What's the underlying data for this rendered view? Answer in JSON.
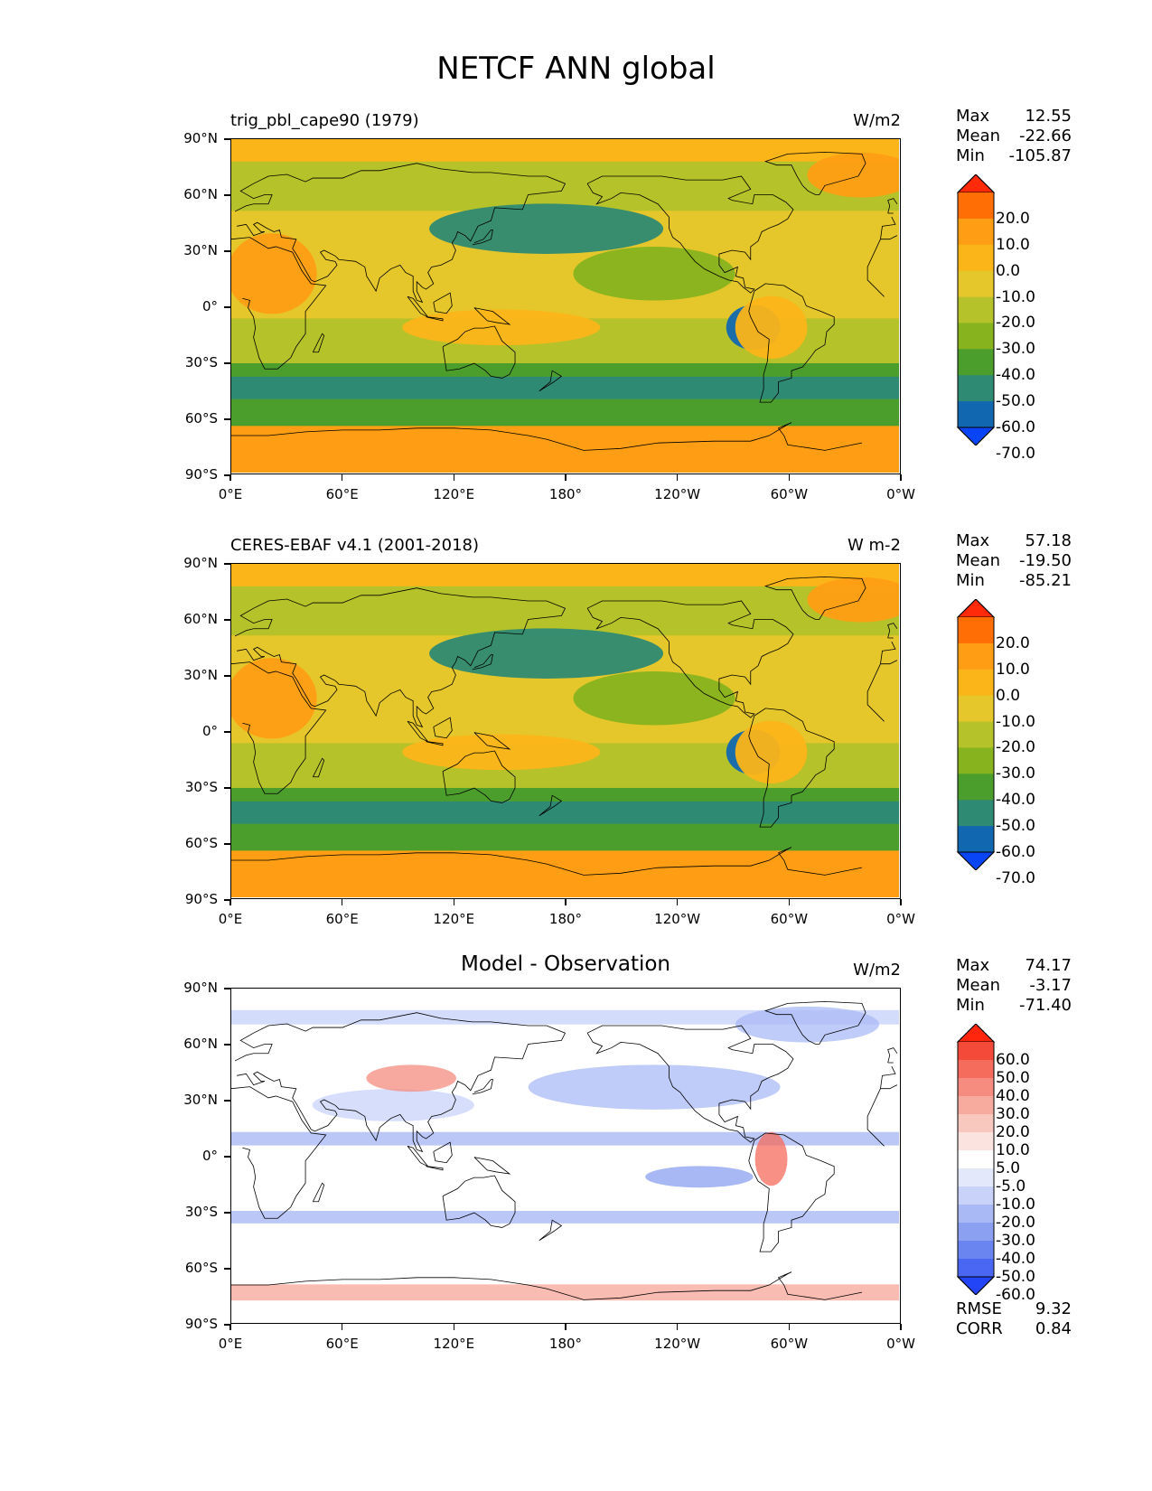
{
  "figure": {
    "title": "NETCF ANN global"
  },
  "axes": {
    "lat_labels": [
      "90°N",
      "60°N",
      "30°N",
      "0°",
      "30°S",
      "60°S",
      "90°S"
    ],
    "lon_labels": [
      "0°E",
      "60°E",
      "120°E",
      "180°",
      "120°W",
      "60°W",
      "0°W"
    ]
  },
  "panels": [
    {
      "title": "trig_pbl_cape90 (1979)",
      "units": "W/m2",
      "stats": {
        "max_label": "Max",
        "max": "12.55",
        "mean_label": "Mean",
        "mean": "-22.66",
        "min_label": "Min",
        "min": "-105.87"
      },
      "colorbar": {
        "labels": [
          "20.0",
          "10.0",
          "0.0",
          "-10.0",
          "-20.0",
          "-30.0",
          "-40.0",
          "-50.0",
          "-60.0",
          "-70.0"
        ],
        "colors": [
          "#ff2a0a",
          "#ff6e05",
          "#ff9e14",
          "#fcb519",
          "#e5c72b",
          "#b5c229",
          "#86b31e",
          "#4c9e2c",
          "#2f8a73",
          "#1268b0",
          "#0a45f5"
        ]
      }
    },
    {
      "title": "CERES-EBAF v4.1 (2001-2018)",
      "units": "W m-2",
      "stats": {
        "max_label": "Max",
        "max": "57.18",
        "mean_label": "Mean",
        "mean": "-19.50",
        "min_label": "Min",
        "min": "-85.21"
      },
      "colorbar": {
        "labels": [
          "20.0",
          "10.0",
          "0.0",
          "-10.0",
          "-20.0",
          "-30.0",
          "-40.0",
          "-50.0",
          "-60.0",
          "-70.0"
        ],
        "colors": [
          "#ff2a0a",
          "#ff6e05",
          "#ff9e14",
          "#fcb519",
          "#e5c72b",
          "#b5c229",
          "#86b31e",
          "#4c9e2c",
          "#2f8a73",
          "#1268b0",
          "#0a45f5"
        ]
      }
    },
    {
      "title": "Model - Observation",
      "units": "W/m2",
      "stats": {
        "max_label": "Max",
        "max": "74.17",
        "mean_label": "Mean",
        "mean": "-3.17",
        "min_label": "Min",
        "min": "-71.40"
      },
      "colorbar": {
        "labels": [
          "60.0",
          "50.0",
          "40.0",
          "30.0",
          "20.0",
          "10.0",
          "5.0",
          "-5.0",
          "-10.0",
          "-20.0",
          "-30.0",
          "-40.0",
          "-50.0",
          "-60.0"
        ],
        "colors": [
          "#ff260d",
          "#f44a3a",
          "#f56b5c",
          "#f58c7f",
          "#f7ab9f",
          "#f8c8bf",
          "#fbe4df",
          "#ffffff",
          "#e3e8fb",
          "#c9d3fa",
          "#a9b9f5",
          "#8ba0f0",
          "#6a84f0",
          "#4a67f3",
          "#2245f8"
        ]
      },
      "extra": {
        "rmse_label": "RMSE",
        "rmse": "9.32",
        "corr_label": "CORR",
        "corr": "0.84"
      }
    }
  ],
  "chart_data": [
    {
      "type": "heatmap",
      "title": "trig_pbl_cape90 (1979)",
      "units": "W/m2",
      "xlabel": "",
      "ylabel": "",
      "x_ticks": [
        "0°E",
        "60°E",
        "120°E",
        "180°",
        "120°W",
        "60°W",
        "0°W"
      ],
      "y_ticks": [
        "90°N",
        "60°N",
        "30°N",
        "0°",
        "30°S",
        "60°S",
        "90°S"
      ],
      "stats": {
        "max": 12.55,
        "mean": -22.66,
        "min": -105.87
      },
      "levels": [
        20,
        10,
        0,
        -10,
        -20,
        -30,
        -40,
        -50,
        -60,
        -70
      ],
      "colorbar_extend": "both"
    },
    {
      "type": "heatmap",
      "title": "CERES-EBAF v4.1 (2001-2018)",
      "units": "W m-2",
      "xlabel": "",
      "ylabel": "",
      "x_ticks": [
        "0°E",
        "60°E",
        "120°E",
        "180°",
        "120°W",
        "60°W",
        "0°W"
      ],
      "y_ticks": [
        "90°N",
        "60°N",
        "30°N",
        "0°",
        "30°S",
        "60°S",
        "90°S"
      ],
      "stats": {
        "max": 57.18,
        "mean": -19.5,
        "min": -85.21
      },
      "levels": [
        20,
        10,
        0,
        -10,
        -20,
        -30,
        -40,
        -50,
        -60,
        -70
      ],
      "colorbar_extend": "both"
    },
    {
      "type": "heatmap",
      "title": "Model - Observation",
      "units": "W/m2",
      "xlabel": "",
      "ylabel": "",
      "x_ticks": [
        "0°E",
        "60°E",
        "120°E",
        "180°",
        "120°W",
        "60°W",
        "0°W"
      ],
      "y_ticks": [
        "90°N",
        "60°N",
        "30°N",
        "0°",
        "30°S",
        "60°S",
        "90°S"
      ],
      "stats": {
        "max": 74.17,
        "mean": -3.17,
        "min": -71.4,
        "rmse": 9.32,
        "corr": 0.84
      },
      "levels": [
        60,
        50,
        40,
        30,
        20,
        10,
        5,
        -5,
        -10,
        -20,
        -30,
        -40,
        -50,
        -60
      ],
      "colorbar_extend": "both"
    }
  ]
}
